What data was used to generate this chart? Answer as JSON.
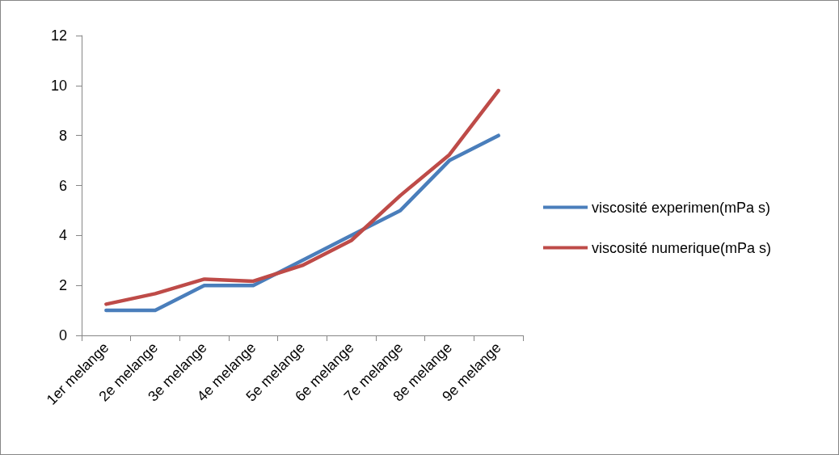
{
  "chart_data": {
    "type": "line",
    "categories": [
      "1er melange",
      "2e melange",
      "3e melange",
      "4e melange",
      "5e melange",
      "6e melange",
      "7e melange",
      "8e melange",
      "9e melange"
    ],
    "series": [
      {
        "name": "viscosité experimen(mPa s)",
        "color": "#4a7ebb",
        "values": [
          1,
          1,
          2,
          2,
          3,
          4,
          5,
          7,
          8
        ]
      },
      {
        "name": "viscosité numerique(mPa s)",
        "color": "#be4b48",
        "values": [
          1.25,
          1.67,
          2.25,
          2.17,
          2.8,
          3.8,
          5.6,
          7.23,
          9.8
        ]
      }
    ],
    "ylim": [
      0,
      12
    ],
    "yticks": [
      0,
      2,
      4,
      6,
      8,
      10,
      12
    ],
    "grid": false,
    "legend": "right",
    "marker": "none",
    "line_style": "solid"
  }
}
